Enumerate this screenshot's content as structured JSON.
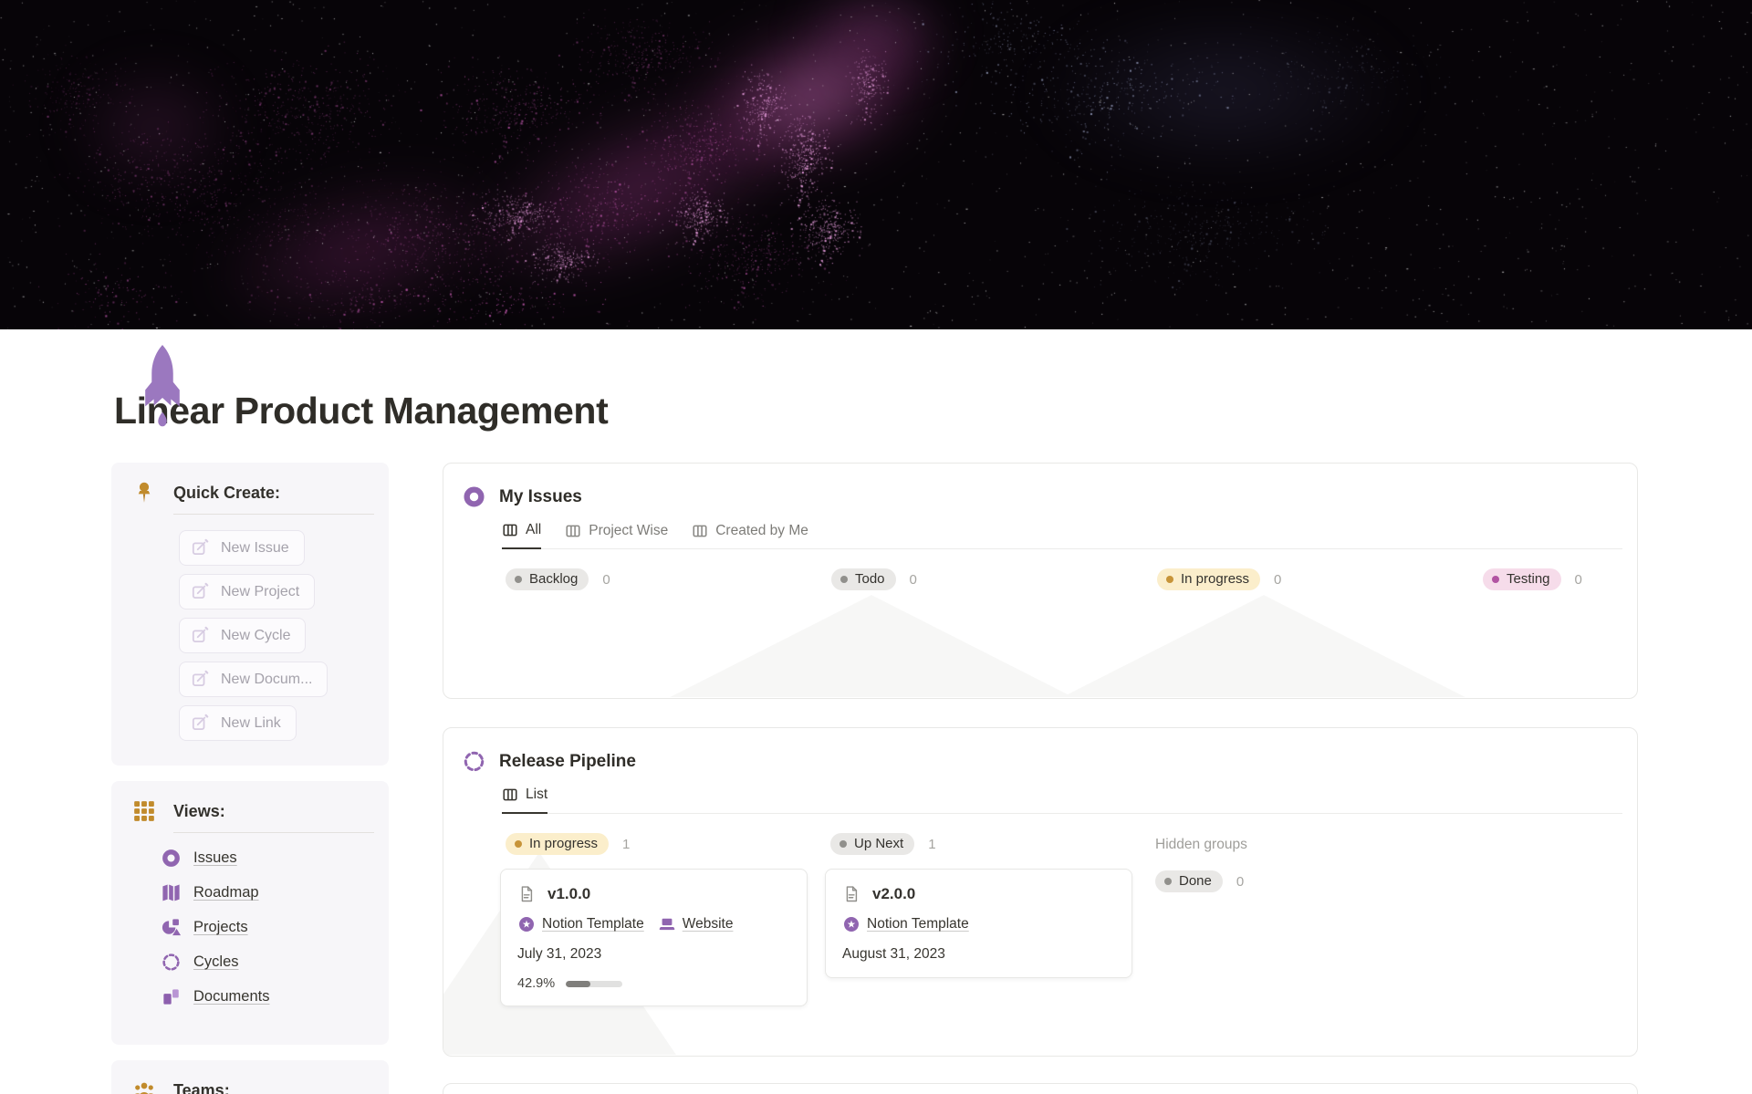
{
  "page": {
    "title": "Linear Product Management",
    "icon": "rocket"
  },
  "colors": {
    "accent_purple": "#9065b0",
    "accent_gold": "#c18b2c",
    "badge_gray_bg": "#e9e8e6",
    "badge_yellow_bg": "#fbeecb",
    "badge_pink_bg": "#f6dcea"
  },
  "sidebar": {
    "quick_create": {
      "heading": "Quick Create:",
      "buttons": [
        {
          "label": "New Issue"
        },
        {
          "label": "New Project"
        },
        {
          "label": "New Cycle"
        },
        {
          "label": "New Docum..."
        },
        {
          "label": "New Link"
        }
      ]
    },
    "views": {
      "heading": "Views:",
      "items": [
        {
          "label": "Issues",
          "icon": "issues-donut-icon"
        },
        {
          "label": "Roadmap",
          "icon": "roadmap-icon"
        },
        {
          "label": "Projects",
          "icon": "projects-icon"
        },
        {
          "label": "Cycles",
          "icon": "cycles-icon"
        },
        {
          "label": "Documents",
          "icon": "documents-icon"
        }
      ]
    },
    "teams": {
      "heading": "Teams:"
    }
  },
  "my_issues": {
    "title": "My Issues",
    "tabs": [
      {
        "label": "All",
        "active": true
      },
      {
        "label": "Project Wise",
        "active": false
      },
      {
        "label": "Created by Me",
        "active": false
      }
    ],
    "groups": [
      {
        "label": "Backlog",
        "count": "0",
        "bg": "#e9e8e6",
        "dot": "#91908c"
      },
      {
        "label": "Todo",
        "count": "0",
        "bg": "#e9e8e6",
        "dot": "#91908c"
      },
      {
        "label": "In progress",
        "count": "0",
        "bg": "#fbeecb",
        "dot": "#c79438"
      },
      {
        "label": "Testing",
        "count": "0",
        "bg": "#f6dcea",
        "dot": "#b254a2"
      }
    ]
  },
  "release_pipeline": {
    "title": "Release Pipeline",
    "tabs": [
      {
        "label": "List",
        "active": true
      }
    ],
    "hidden_groups_label": "Hidden groups",
    "groups": [
      {
        "label": "In progress",
        "count": "1",
        "bg": "#fbeecb",
        "dot": "#c79438"
      },
      {
        "label": "Up Next",
        "count": "1",
        "bg": "#e9e8e6",
        "dot": "#91908c"
      },
      {
        "label": "Done",
        "count": "0",
        "bg": "#e9e8e6",
        "dot": "#91908c"
      }
    ],
    "cards": [
      {
        "title": "v1.0.0",
        "links": [
          {
            "label": "Notion Template",
            "icon": "notion-star-icon"
          },
          {
            "label": "Website",
            "icon": "laptop-icon"
          }
        ],
        "date": "July 31, 2023",
        "progress_label": "42.9%",
        "progress_value": 42.9
      },
      {
        "title": "v2.0.0",
        "links": [
          {
            "label": "Notion Template",
            "icon": "notion-star-icon"
          }
        ],
        "date": "August 31, 2023"
      }
    ]
  }
}
